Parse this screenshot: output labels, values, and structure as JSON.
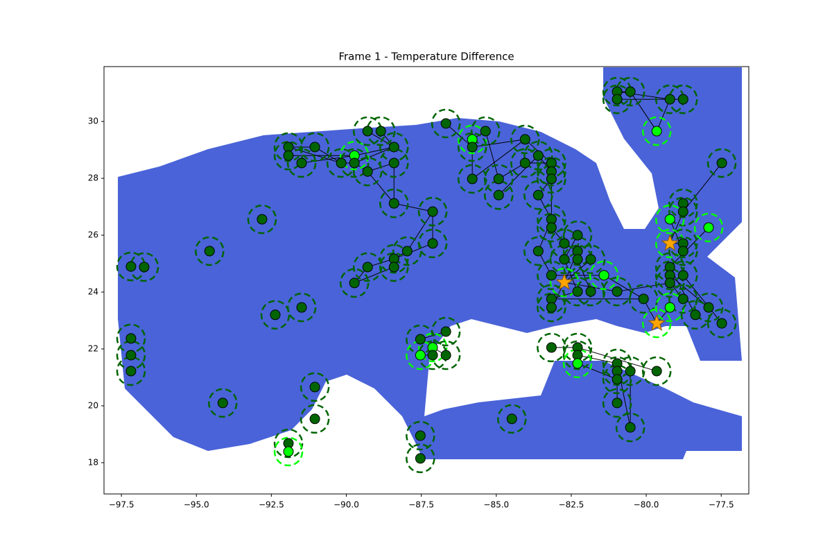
{
  "chart_data": {
    "type": "network",
    "title": "Frame 1 - Temperature Difference",
    "xlim": [
      -98.08,
      -76.58
    ],
    "ylim": [
      16.9,
      31.93
    ],
    "xticks": [
      {
        "value": -97.5,
        "label": "−97.5"
      },
      {
        "value": -95,
        "label": "−95.0"
      },
      {
        "value": -92.5,
        "label": "−92.5"
      },
      {
        "value": -90,
        "label": "−90.0"
      },
      {
        "value": -87.5,
        "label": "−87.5"
      },
      {
        "value": -85,
        "label": "−85.0"
      },
      {
        "value": -82.5,
        "label": "−82.5"
      },
      {
        "value": -80,
        "label": "−80.0"
      },
      {
        "value": -77.5,
        "label": "−77.5"
      }
    ],
    "yticks": [
      18,
      20,
      22,
      24,
      26,
      28,
      30
    ],
    "groups": [
      {
        "color": "#006400",
        "ring_color": "#006400",
        "marker": "circle"
      },
      {
        "color": "#00ff00",
        "ring_color": "#00ff00",
        "marker": "circle"
      },
      {
        "color": "#ffa500",
        "ring_color": "#00ff00",
        "marker": "star"
      }
    ],
    "edge_color": "#000000",
    "x": [
      -97.18,
      -96.74,
      -94.56,
      -92.81,
      -97.18,
      -97.18,
      -97.18,
      -92.37,
      -91.49,
      -94.12,
      -91.05,
      -91.05,
      -91.93,
      -91.93,
      -87.53,
      -87.53,
      -84.48,
      -91.93,
      -91.93,
      -91.49,
      -91.05,
      -90.17,
      -89.73,
      -89.73,
      -89.29,
      -89.29,
      -88.85,
      -88.41,
      -88.41,
      -88.41,
      -87.12,
      -87.12,
      -87.97,
      -88.41,
      -88.41,
      -89.29,
      -89.73,
      -86.68,
      -85.8,
      -85.8,
      -85.36,
      -85.8,
      -84.92,
      -84.92,
      -84.04,
      -84.04,
      -83.6,
      -83.6,
      -83.16,
      -83.16,
      -83.16,
      -87.53,
      -87.12,
      -86.68,
      -87.12,
      -86.68,
      -87.53,
      -83.16,
      -83.16,
      -83.6,
      -82.73,
      -82.29,
      -82.29,
      -81.85,
      -82.73,
      -82.29,
      -83.16,
      -82.73,
      -82.29,
      -81.85,
      -81.41,
      -83.16,
      -83.16,
      -80.97,
      -80.09,
      -83.16,
      -82.29,
      -82.29,
      -82.29,
      -80.97,
      -80.97,
      -80.97,
      -80.53,
      -79.65,
      -80.97,
      -80.53,
      -80.97,
      -80.97,
      -80.53,
      -79.21,
      -78.77,
      -79.65,
      -77.48,
      -78.77,
      -78.77,
      -79.21,
      -77.92,
      -79.21,
      -78.77,
      -78.77,
      -79.21,
      -79.21,
      -78.77,
      -79.21,
      -79.65,
      -79.21,
      -78.77,
      -78.36,
      -77.92,
      -77.48
    ],
    "y": [
      24.9,
      24.88,
      25.44,
      26.56,
      22.37,
      21.78,
      21.22,
      23.2,
      23.46,
      20.1,
      20.66,
      19.54,
      18.68,
      18.39,
      18.95,
      18.15,
      19.54,
      29.1,
      28.8,
      28.54,
      29.1,
      28.54,
      28.8,
      28.54,
      29.66,
      28.24,
      29.66,
      29.1,
      28.54,
      27.12,
      26.83,
      25.71,
      25.44,
      25.17,
      24.88,
      24.88,
      24.32,
      29.93,
      29.37,
      29.1,
      29.66,
      27.98,
      27.98,
      27.41,
      29.37,
      28.54,
      28.8,
      27.41,
      28.54,
      28.24,
      27.98,
      22.34,
      22.05,
      22.61,
      21.78,
      21.78,
      21.78,
      26.56,
      26.27,
      25.44,
      25.71,
      26.0,
      25.44,
      25.15,
      25.15,
      25.15,
      24.59,
      24.34,
      24.02,
      24.02,
      24.59,
      23.76,
      23.46,
      24.02,
      23.76,
      22.05,
      22.05,
      21.78,
      21.49,
      21.49,
      21.22,
      20.93,
      21.22,
      21.22,
      20.1,
      19.24,
      31.05,
      30.78,
      31.05,
      30.78,
      30.78,
      29.66,
      28.54,
      27.12,
      26.83,
      26.56,
      26.27,
      25.71,
      25.71,
      25.44,
      24.88,
      24.59,
      24.59,
      24.32,
      22.9,
      23.46,
      23.76,
      23.2,
      23.46,
      22.9
    ],
    "group": [
      0,
      0,
      0,
      0,
      0,
      0,
      0,
      0,
      0,
      0,
      0,
      0,
      0,
      1,
      0,
      0,
      0,
      0,
      0,
      0,
      0,
      0,
      1,
      0,
      0,
      0,
      0,
      0,
      0,
      0,
      0,
      0,
      0,
      0,
      0,
      0,
      0,
      0,
      1,
      0,
      0,
      0,
      0,
      0,
      0,
      0,
      0,
      0,
      0,
      0,
      0,
      0,
      1,
      0,
      0,
      0,
      1,
      0,
      0,
      0,
      0,
      0,
      0,
      0,
      0,
      0,
      0,
      2,
      0,
      0,
      1,
      0,
      0,
      0,
      0,
      0,
      0,
      0,
      1,
      0,
      0,
      0,
      0,
      0,
      0,
      0,
      0,
      0,
      0,
      0,
      0,
      1,
      0,
      0,
      0,
      1,
      1,
      2,
      0,
      0,
      0,
      0,
      0,
      0,
      2,
      1,
      0,
      0,
      0,
      0
    ],
    "edges": [
      [
        17,
        20
      ],
      [
        17,
        21
      ],
      [
        18,
        22
      ],
      [
        19,
        22
      ],
      [
        20,
        21
      ],
      [
        21,
        23
      ],
      [
        22,
        27
      ],
      [
        23,
        27
      ],
      [
        24,
        27
      ],
      [
        26,
        27
      ],
      [
        25,
        28
      ],
      [
        23,
        25
      ],
      [
        28,
        29
      ],
      [
        25,
        29
      ],
      [
        29,
        30
      ],
      [
        30,
        31
      ],
      [
        30,
        32
      ],
      [
        32,
        33
      ],
      [
        33,
        35
      ],
      [
        34,
        36
      ],
      [
        35,
        36
      ],
      [
        31,
        33
      ],
      [
        37,
        39
      ],
      [
        38,
        40
      ],
      [
        39,
        44
      ],
      [
        38,
        41
      ],
      [
        41,
        44
      ],
      [
        40,
        42
      ],
      [
        42,
        45
      ],
      [
        43,
        46
      ],
      [
        44,
        48
      ],
      [
        45,
        48
      ],
      [
        46,
        49
      ],
      [
        47,
        50
      ],
      [
        48,
        50
      ],
      [
        47,
        57
      ],
      [
        50,
        57
      ],
      [
        57,
        59
      ],
      [
        58,
        60
      ],
      [
        59,
        66
      ],
      [
        60,
        62
      ],
      [
        61,
        64
      ],
      [
        62,
        67
      ],
      [
        63,
        67
      ],
      [
        64,
        68
      ],
      [
        65,
        69
      ],
      [
        66,
        70
      ],
      [
        67,
        73
      ],
      [
        68,
        71
      ],
      [
        71,
        74
      ],
      [
        72,
        67
      ],
      [
        70,
        74
      ],
      [
        73,
        103
      ],
      [
        74,
        104
      ],
      [
        104,
        105
      ],
      [
        103,
        106
      ],
      [
        100,
        107
      ],
      [
        101,
        108
      ],
      [
        102,
        109
      ],
      [
        97,
        98
      ],
      [
        95,
        99
      ],
      [
        96,
        100
      ],
      [
        93,
        94
      ],
      [
        92,
        94
      ],
      [
        94,
        97
      ],
      [
        86,
        89
      ],
      [
        87,
        90
      ],
      [
        88,
        91
      ],
      [
        86,
        88
      ],
      [
        89,
        91
      ],
      [
        76,
        83
      ],
      [
        77,
        79
      ],
      [
        78,
        81
      ],
      [
        79,
        85
      ],
      [
        80,
        84
      ],
      [
        82,
        85
      ],
      [
        75,
        76
      ],
      [
        51,
        53
      ],
      [
        52,
        55
      ],
      [
        54,
        56
      ]
    ]
  }
}
